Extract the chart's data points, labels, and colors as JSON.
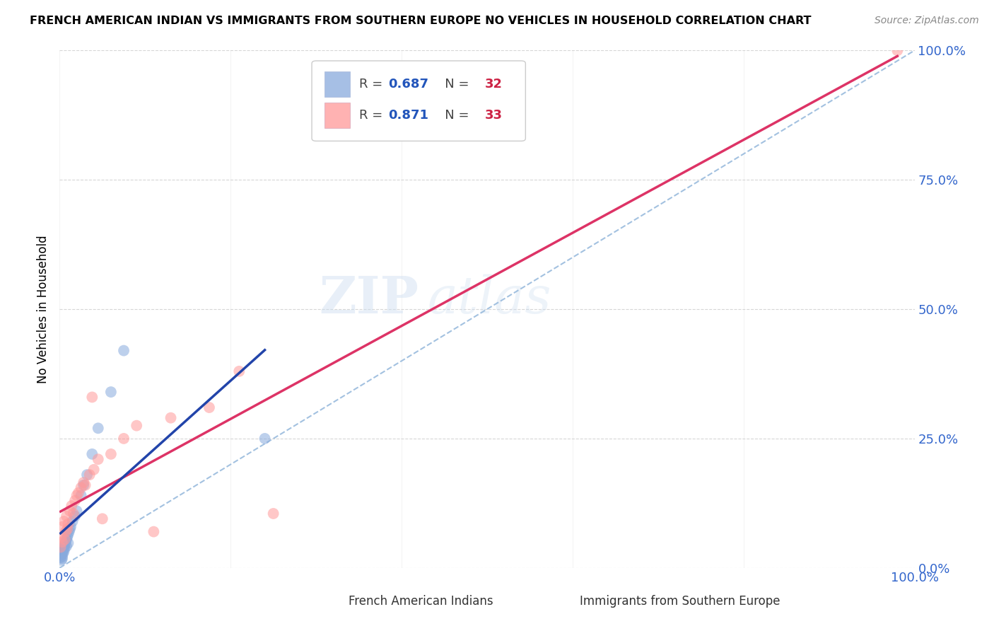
{
  "title": "FRENCH AMERICAN INDIAN VS IMMIGRANTS FROM SOUTHERN EUROPE NO VEHICLES IN HOUSEHOLD CORRELATION CHART",
  "source": "Source: ZipAtlas.com",
  "ylabel": "No Vehicles in Household",
  "legend_label_blue": "French American Indians",
  "legend_label_pink": "Immigrants from Southern Europe",
  "color_blue": "#88AADD",
  "color_pink": "#FF9999",
  "color_blue_line": "#2244AA",
  "color_pink_line": "#DD3366",
  "color_diag": "#99BBDD",
  "watermark_zip": "ZIP",
  "watermark_atlas": "atlas",
  "R_blue": 0.687,
  "N_blue": 32,
  "R_pink": 0.871,
  "N_pink": 33,
  "blue_scatter_x": [
    0.001,
    0.002,
    0.002,
    0.003,
    0.003,
    0.003,
    0.004,
    0.004,
    0.005,
    0.005,
    0.006,
    0.006,
    0.007,
    0.008,
    0.008,
    0.009,
    0.01,
    0.01,
    0.011,
    0.012,
    0.013,
    0.015,
    0.018,
    0.02,
    0.025,
    0.028,
    0.032,
    0.038,
    0.045,
    0.06,
    0.075,
    0.24
  ],
  "blue_scatter_y": [
    0.02,
    0.015,
    0.025,
    0.03,
    0.018,
    0.022,
    0.028,
    0.035,
    0.04,
    0.032,
    0.038,
    0.045,
    0.05,
    0.055,
    0.042,
    0.06,
    0.065,
    0.048,
    0.07,
    0.075,
    0.08,
    0.09,
    0.1,
    0.11,
    0.14,
    0.16,
    0.18,
    0.22,
    0.27,
    0.34,
    0.42,
    0.25
  ],
  "pink_scatter_x": [
    0.001,
    0.002,
    0.003,
    0.004,
    0.005,
    0.006,
    0.007,
    0.008,
    0.009,
    0.01,
    0.012,
    0.014,
    0.016,
    0.018,
    0.02,
    0.022,
    0.025,
    0.028,
    0.03,
    0.035,
    0.038,
    0.04,
    0.045,
    0.05,
    0.06,
    0.075,
    0.09,
    0.11,
    0.13,
    0.175,
    0.21,
    0.25,
    0.98
  ],
  "pink_scatter_y": [
    0.04,
    0.06,
    0.05,
    0.08,
    0.09,
    0.055,
    0.07,
    0.1,
    0.075,
    0.085,
    0.11,
    0.12,
    0.105,
    0.13,
    0.14,
    0.145,
    0.155,
    0.165,
    0.16,
    0.18,
    0.33,
    0.19,
    0.21,
    0.095,
    0.22,
    0.25,
    0.275,
    0.07,
    0.29,
    0.31,
    0.38,
    0.105,
    1.0
  ],
  "xlim": [
    0.0,
    1.0
  ],
  "ylim": [
    0.0,
    1.0
  ],
  "xtick_values": [
    0.0,
    0.2,
    0.4,
    0.6,
    0.8,
    1.0
  ],
  "ytick_values": [
    0.0,
    0.25,
    0.5,
    0.75,
    1.0
  ],
  "figsize": [
    14.06,
    8.92
  ],
  "dpi": 100
}
